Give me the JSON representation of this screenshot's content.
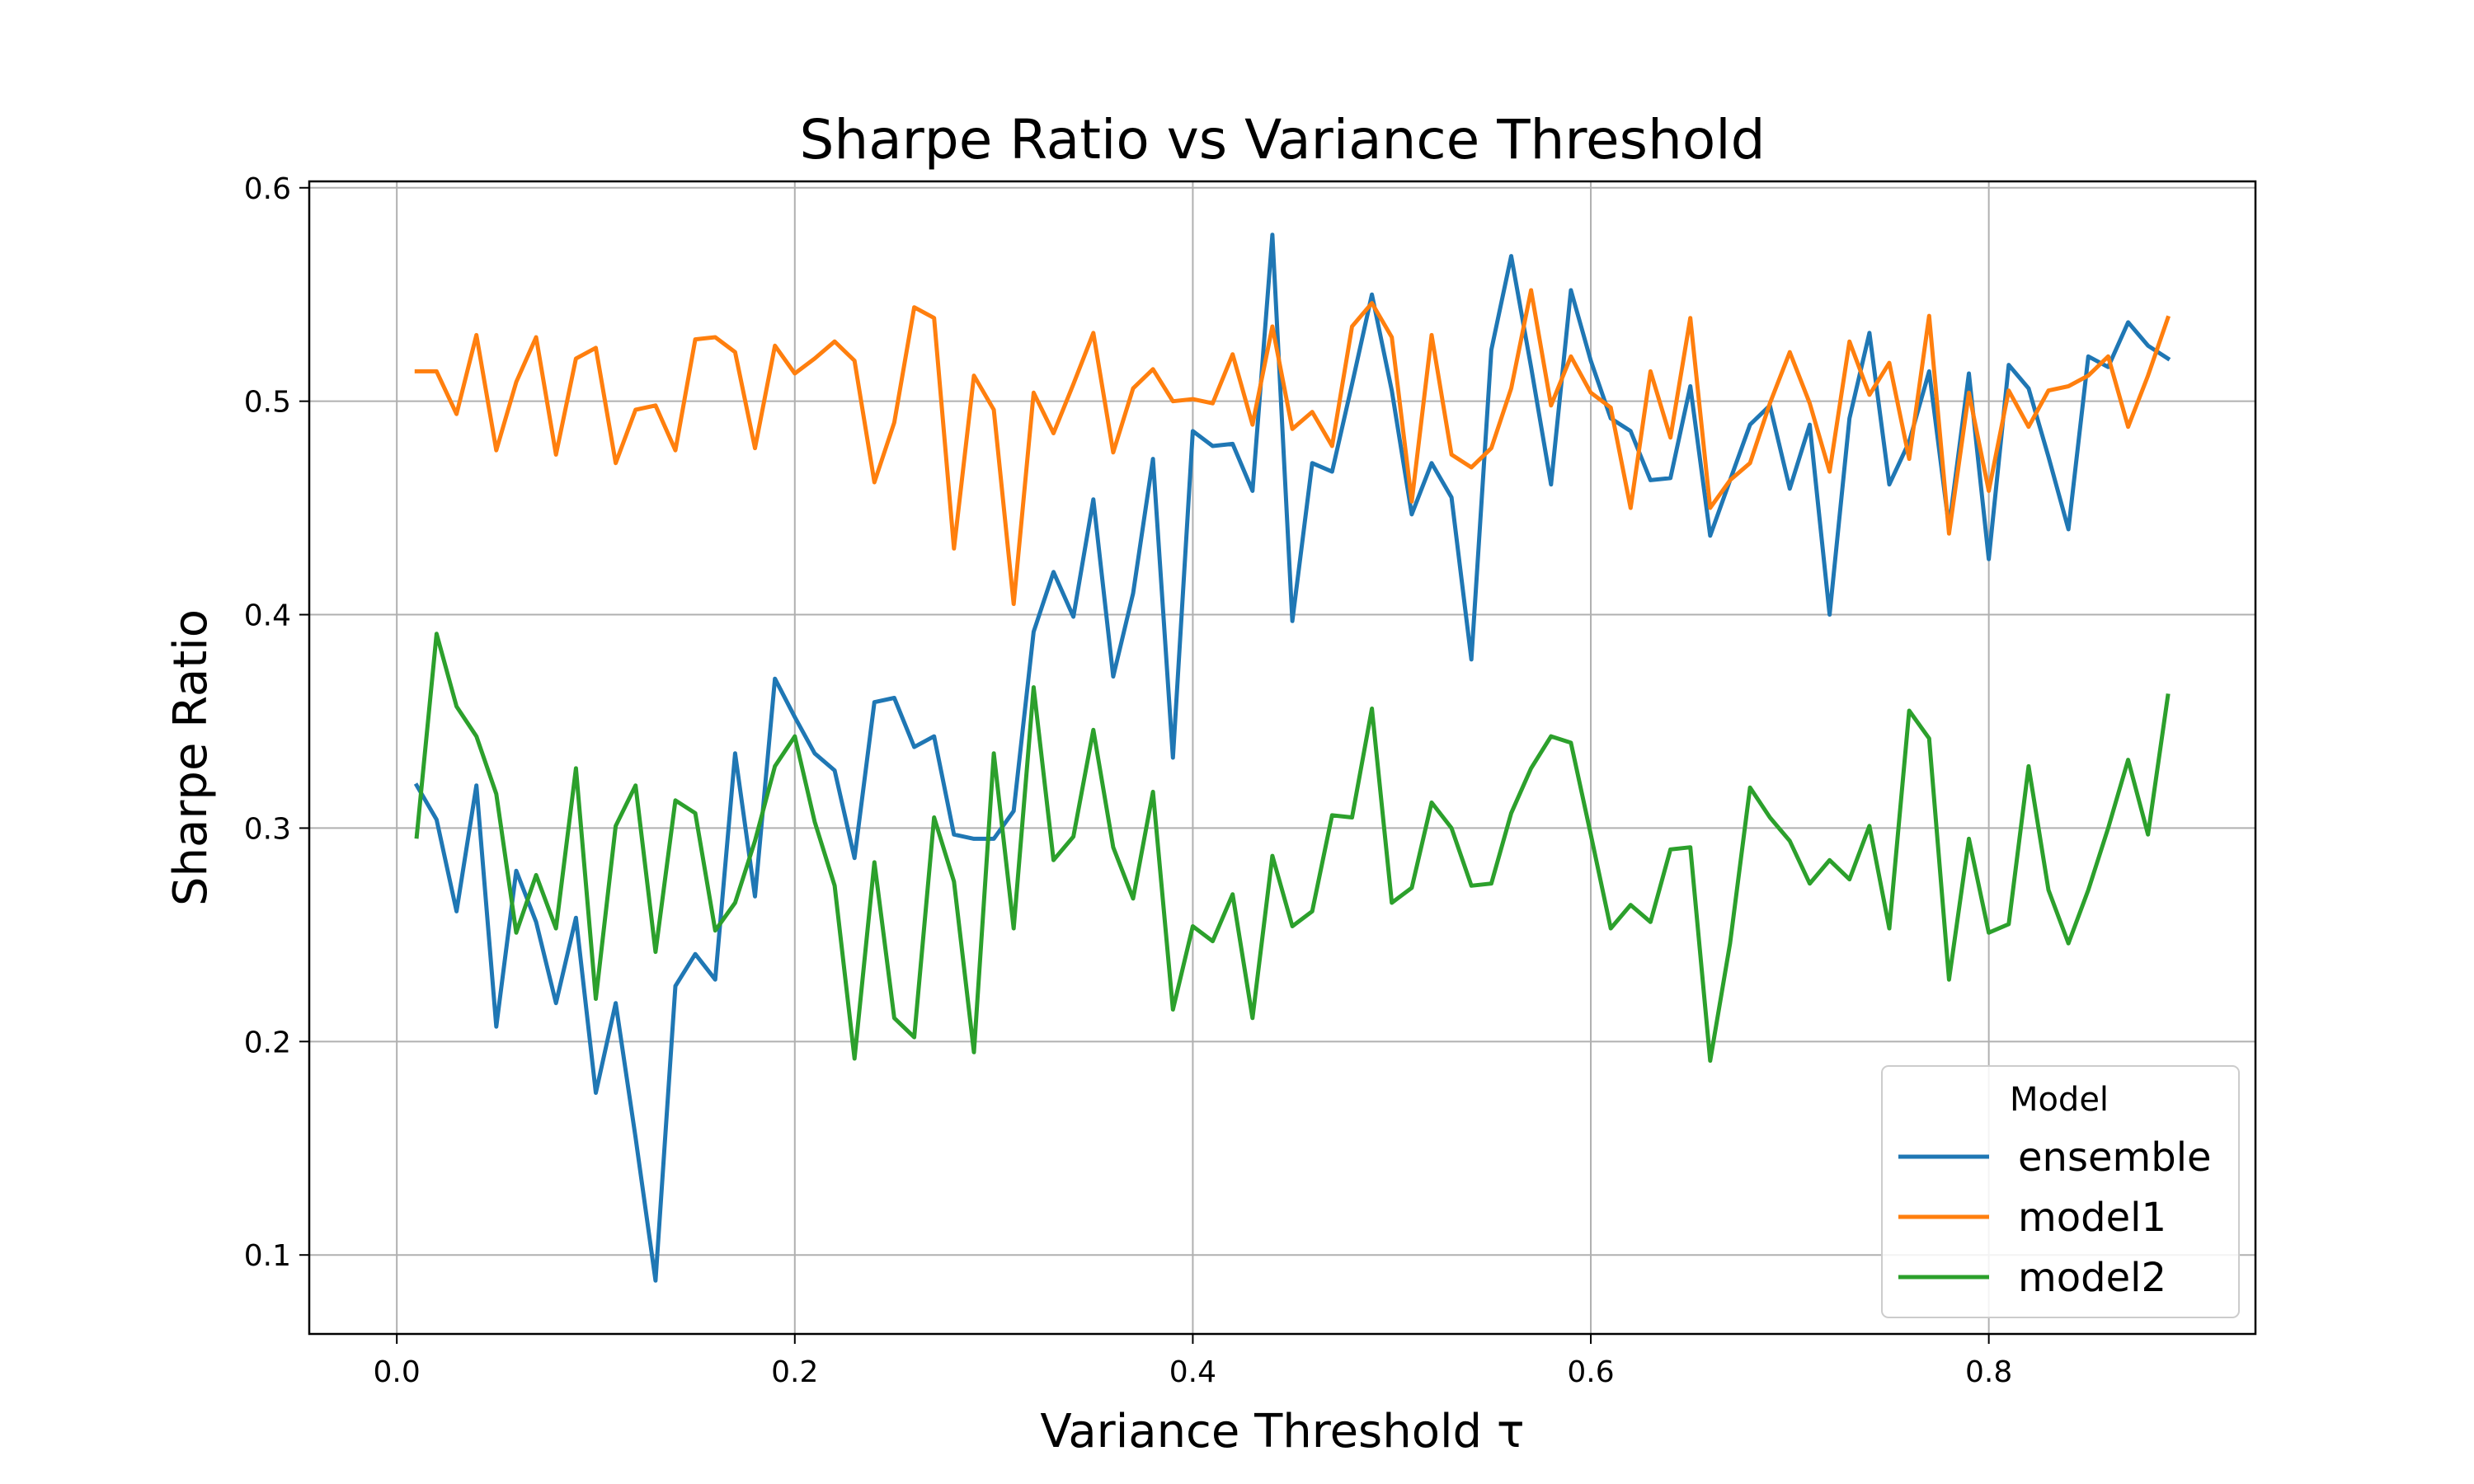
{
  "chart_data": {
    "type": "line",
    "title": "Sharpe Ratio vs Variance Threshold",
    "xlabel": "Variance Threshold τ",
    "ylabel": "Sharpe Ratio",
    "xlim": [
      -0.044,
      0.934
    ],
    "ylim": [
      0.063,
      0.603
    ],
    "xticks": [
      0.0,
      0.2,
      0.4,
      0.6,
      0.8
    ],
    "xtick_labels": [
      "0.0",
      "0.2",
      "0.4",
      "0.6",
      "0.8"
    ],
    "yticks": [
      0.1,
      0.2,
      0.3,
      0.4,
      0.5,
      0.6
    ],
    "ytick_labels": [
      "0.1",
      "0.2",
      "0.3",
      "0.4",
      "0.5",
      "0.6"
    ],
    "grid": true,
    "legend": {
      "title": "Model",
      "position": "lower-right"
    },
    "x": [
      0.01,
      0.02,
      0.03,
      0.04,
      0.05,
      0.06,
      0.07,
      0.08,
      0.09,
      0.1,
      0.11,
      0.12,
      0.13,
      0.14,
      0.15,
      0.16,
      0.17,
      0.18,
      0.19,
      0.2,
      0.21,
      0.22,
      0.23,
      0.24,
      0.25,
      0.26,
      0.27,
      0.28,
      0.29,
      0.3,
      0.31,
      0.32,
      0.33,
      0.34,
      0.35,
      0.36,
      0.37,
      0.38,
      0.39,
      0.4,
      0.41,
      0.42,
      0.43,
      0.44,
      0.45,
      0.46,
      0.47,
      0.48,
      0.49,
      0.5,
      0.51,
      0.52,
      0.53,
      0.54,
      0.55,
      0.56,
      0.57,
      0.58,
      0.59,
      0.6,
      0.61,
      0.62,
      0.63,
      0.64,
      0.65,
      0.66,
      0.67,
      0.68,
      0.69,
      0.7,
      0.71,
      0.72,
      0.73,
      0.74,
      0.75,
      0.76,
      0.77,
      0.78,
      0.79,
      0.8,
      0.81,
      0.82,
      0.83,
      0.84,
      0.85,
      0.86,
      0.87,
      0.88,
      0.89
    ],
    "series": [
      {
        "name": "ensemble",
        "color": "#1f77b4",
        "values": [
          0.32,
          0.304,
          0.261,
          0.32,
          0.207,
          0.28,
          0.256,
          0.218,
          0.258,
          0.176,
          0.218,
          0.155,
          0.088,
          0.226,
          0.241,
          0.229,
          0.335,
          0.268,
          0.37,
          0.352,
          0.335,
          0.327,
          0.286,
          0.359,
          0.361,
          0.338,
          0.343,
          0.297,
          0.295,
          0.295,
          0.308,
          0.392,
          0.42,
          0.399,
          0.454,
          0.371,
          0.41,
          0.473,
          0.333,
          0.486,
          0.479,
          0.48,
          0.458,
          0.578,
          0.397,
          0.471,
          0.467,
          0.508,
          0.55,
          0.505,
          0.447,
          0.471,
          0.455,
          0.379,
          0.524,
          0.568,
          0.516,
          0.461,
          0.552,
          0.519,
          0.492,
          0.486,
          0.463,
          0.464,
          0.507,
          0.437,
          0.463,
          0.489,
          0.498,
          0.459,
          0.489,
          0.4,
          0.492,
          0.532,
          0.461,
          0.481,
          0.514,
          0.441,
          0.513,
          0.426,
          0.517,
          0.506,
          0.474,
          0.44,
          0.521,
          0.516,
          0.537,
          0.526,
          0.52
        ]
      },
      {
        "name": "model1",
        "color": "#ff7f0e",
        "values": [
          0.514,
          0.514,
          0.494,
          0.531,
          0.477,
          0.509,
          0.53,
          0.475,
          0.52,
          0.525,
          0.471,
          0.496,
          0.498,
          0.477,
          0.529,
          0.53,
          0.523,
          0.478,
          0.526,
          0.513,
          0.52,
          0.528,
          0.519,
          0.462,
          0.49,
          0.544,
          0.539,
          0.431,
          0.512,
          0.496,
          0.405,
          0.504,
          0.485,
          0.508,
          0.532,
          0.476,
          0.506,
          0.515,
          0.5,
          0.501,
          0.499,
          0.522,
          0.489,
          0.535,
          0.487,
          0.495,
          0.479,
          0.535,
          0.546,
          0.53,
          0.453,
          0.531,
          0.475,
          0.469,
          0.478,
          0.506,
          0.552,
          0.498,
          0.521,
          0.504,
          0.497,
          0.45,
          0.514,
          0.483,
          0.539,
          0.45,
          0.463,
          0.471,
          0.499,
          0.523,
          0.499,
          0.467,
          0.528,
          0.503,
          0.518,
          0.473,
          0.54,
          0.438,
          0.504,
          0.458,
          0.505,
          0.488,
          0.505,
          0.507,
          0.512,
          0.521,
          0.488,
          0.512,
          0.539
        ]
      },
      {
        "name": "model2",
        "color": "#2ca02c",
        "values": [
          0.296,
          0.391,
          0.357,
          0.343,
          0.316,
          0.251,
          0.278,
          0.253,
          0.328,
          0.22,
          0.301,
          0.32,
          0.242,
          0.313,
          0.307,
          0.252,
          0.265,
          0.294,
          0.329,
          0.343,
          0.303,
          0.273,
          0.192,
          0.284,
          0.211,
          0.202,
          0.305,
          0.275,
          0.195,
          0.335,
          0.253,
          0.366,
          0.285,
          0.296,
          0.346,
          0.291,
          0.267,
          0.317,
          0.215,
          0.254,
          0.247,
          0.269,
          0.211,
          0.287,
          0.254,
          0.261,
          0.306,
          0.305,
          0.356,
          0.265,
          0.272,
          0.312,
          0.3,
          0.273,
          0.274,
          0.307,
          0.328,
          0.343,
          0.34,
          0.297,
          0.253,
          0.264,
          0.256,
          0.29,
          0.291,
          0.191,
          0.246,
          0.319,
          0.305,
          0.294,
          0.274,
          0.285,
          0.276,
          0.301,
          0.253,
          0.355,
          0.342,
          0.229,
          0.295,
          0.251,
          0.255,
          0.329,
          0.271,
          0.246,
          0.271,
          0.3,
          0.332,
          0.297,
          0.362
        ]
      }
    ]
  }
}
